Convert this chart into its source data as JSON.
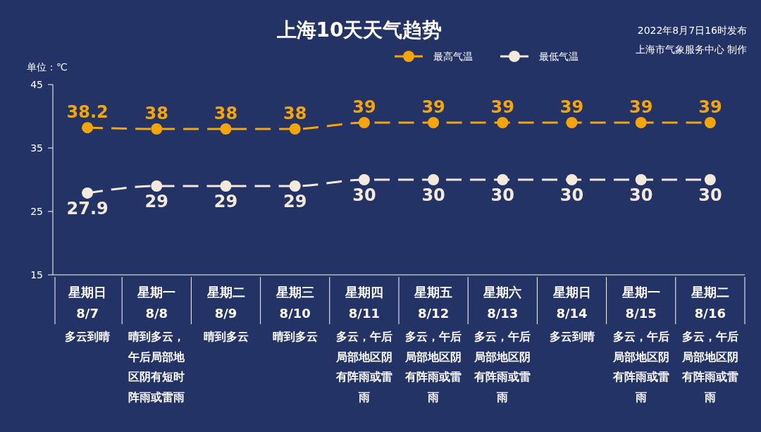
{
  "chart_data": {
    "type": "line",
    "title": "上海10天天气趋势",
    "ylabel": "单位：℃",
    "annotations": [
      "2022年8月7日16时发布",
      "上海市气象服务中心 制作"
    ],
    "categories": [
      "星期日\n8/7\n多云到晴",
      "星期一\n8/8\n晴到多云，午后局部地区阴有短时阵雨或雷雨",
      "星期二\n8/9\n晴到多云",
      "星期三\n8/10\n晴到多云",
      "星期四\n8/11\n多云，午后局部地区阴有阵雨或雷雨",
      "星期五\n8/12\n多云，午后局部地区阴有阵雨或雷雨",
      "星期六\n8/13\n多云，午后局部地区阴有阵雨或雷雨",
      "星期日\n8/14\n多云到晴",
      "星期一\n8/15\n多云，午后局部地区阴有阵雨或雷雨",
      "星期二\n8/16\n多云，午后局部地区阴有阵雨或雷雨"
    ],
    "series": [
      {
        "name": "最高气温",
        "color": "#f5a50a",
        "values": [
          38.2,
          38,
          38,
          38,
          39,
          39,
          39,
          39,
          39,
          39
        ]
      },
      {
        "name": "最低气温",
        "color": "#f3e9dc",
        "values": [
          27.9,
          29,
          29,
          29,
          30,
          30,
          30,
          30,
          30,
          30
        ]
      }
    ],
    "ylim": [
      15,
      45
    ],
    "yticks": [
      15,
      25,
      35,
      45
    ],
    "data_labels": true,
    "legend": "top",
    "marker": "circle",
    "line_style": "dashed"
  }
}
